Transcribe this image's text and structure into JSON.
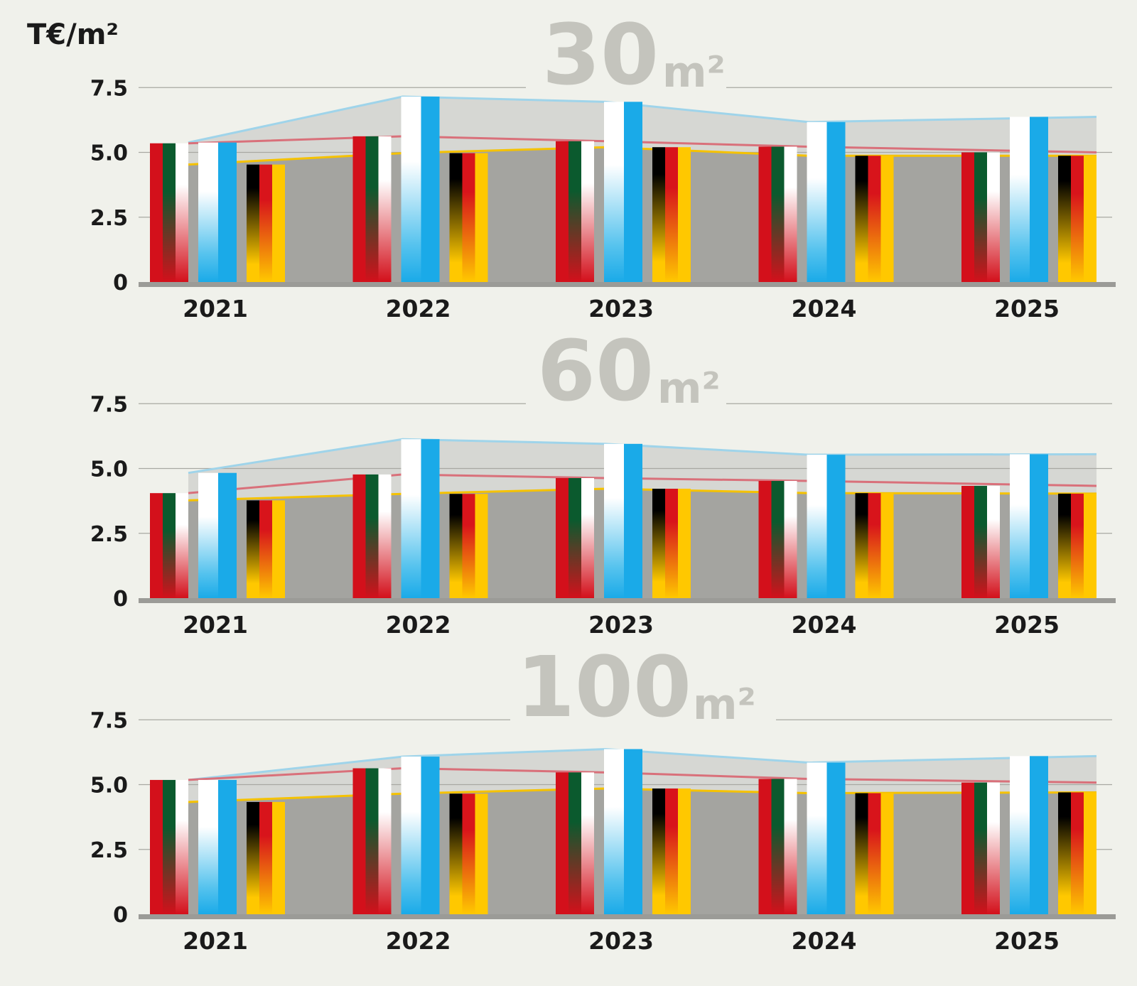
{
  "unit_label": "T€/m²",
  "colors": {
    "background": "#f0f1eb",
    "grid": "#a8a8a2",
    "base_area": "#a4a4a0",
    "upper_area": "#d6d7d3",
    "axis": "#9b9b97",
    "watermark": "#c4c4bd",
    "red_line": "#d9707a",
    "blue_line": "#9fd4ea",
    "yellow_line": "#f5c200"
  },
  "chart_data": [
    {
      "type": "bar",
      "title_number": "30",
      "title_unit": "m²",
      "categories": [
        "2021",
        "2022",
        "2023",
        "2024",
        "2025"
      ],
      "yticks": [
        "7.5",
        "5.0",
        "2.5",
        "0"
      ],
      "ylim": [
        0,
        7.5
      ],
      "series": [
        {
          "flag": "italy",
          "values": [
            5.35,
            5.62,
            5.43,
            5.22,
            5.0
          ]
        },
        {
          "flag": "argentina",
          "values": [
            5.38,
            7.15,
            6.95,
            6.17,
            6.37
          ]
        },
        {
          "flag": "germany",
          "values": [
            4.53,
            4.97,
            5.2,
            4.87,
            4.87
          ]
        }
      ]
    },
    {
      "type": "bar",
      "title_number": "60",
      "title_unit": "m²",
      "categories": [
        "2021",
        "2022",
        "2023",
        "2024",
        "2025"
      ],
      "yticks": [
        "7.5",
        "5.0",
        "2.5",
        "0"
      ],
      "ylim": [
        0,
        7.5
      ],
      "series": [
        {
          "flag": "italy",
          "values": [
            4.05,
            4.77,
            4.63,
            4.52,
            4.33
          ]
        },
        {
          "flag": "argentina",
          "values": [
            4.83,
            6.13,
            5.95,
            5.53,
            5.55
          ]
        },
        {
          "flag": "germany",
          "values": [
            3.77,
            4.02,
            4.22,
            4.05,
            4.03
          ]
        }
      ]
    },
    {
      "type": "bar",
      "title_number": "100",
      "title_unit": "m²",
      "categories": [
        "2021",
        "2022",
        "2023",
        "2024",
        "2025"
      ],
      "yticks": [
        "7.5",
        "5.0",
        "2.5",
        "0"
      ],
      "ylim": [
        0,
        7.5
      ],
      "series": [
        {
          "flag": "italy",
          "values": [
            5.18,
            5.63,
            5.47,
            5.22,
            5.08
          ]
        },
        {
          "flag": "argentina",
          "values": [
            5.18,
            6.08,
            6.37,
            5.85,
            6.1
          ]
        },
        {
          "flag": "germany",
          "values": [
            4.33,
            4.65,
            4.85,
            4.67,
            4.7
          ]
        }
      ]
    }
  ]
}
